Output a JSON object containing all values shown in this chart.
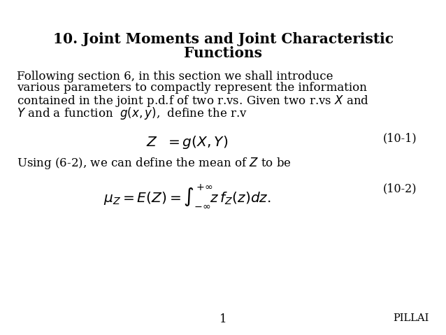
{
  "background_color": "#ffffff",
  "title_line1": "10. Joint Moments and Joint Characteristic",
  "title_line2": "Functions",
  "eq1_label": "(10-1)",
  "eq2_label": "(10-2)",
  "page_number": "1",
  "watermark": "PILLAI",
  "font_color": "#000000",
  "title_fontsize": 14.5,
  "body_fontsize": 12.0,
  "eq_fontsize": 14.5,
  "label_fontsize": 11.5
}
